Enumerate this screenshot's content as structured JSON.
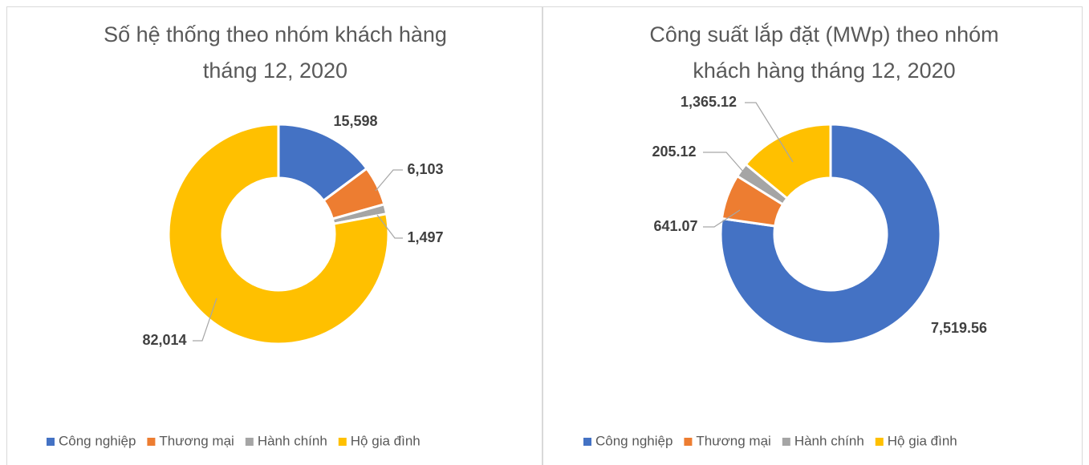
{
  "chart_data": [
    {
      "type": "donut",
      "title": [
        "Số hệ thống theo nhóm khách hàng",
        "tháng 12, 2020"
      ],
      "categories": [
        "Công nghiệp",
        "Thương mại",
        "Hành chính",
        "Hộ gia đình"
      ],
      "colors": [
        "#4472c4",
        "#ed7d31",
        "#a5a5a5",
        "#ffc000"
      ],
      "values": [
        15598,
        6103,
        1497,
        82014
      ],
      "value_labels": [
        "15,598",
        "6,103",
        "1,497",
        "82,014"
      ],
      "legend": "bottom"
    },
    {
      "type": "donut",
      "title": [
        "Công suất lắp đặt (MWp) theo nhóm",
        "khách hàng tháng 12, 2020"
      ],
      "categories": [
        "Công nghiệp",
        "Thương mại",
        "Hành chính",
        "Hộ gia đình"
      ],
      "colors": [
        "#4472c4",
        "#ed7d31",
        "#a5a5a5",
        "#ffc000"
      ],
      "values": [
        7519.56,
        641.07,
        205.12,
        1365.12
      ],
      "value_labels": [
        "7,519.56",
        "641.07",
        "205.12",
        "1,365.12"
      ],
      "legend": "bottom"
    }
  ]
}
